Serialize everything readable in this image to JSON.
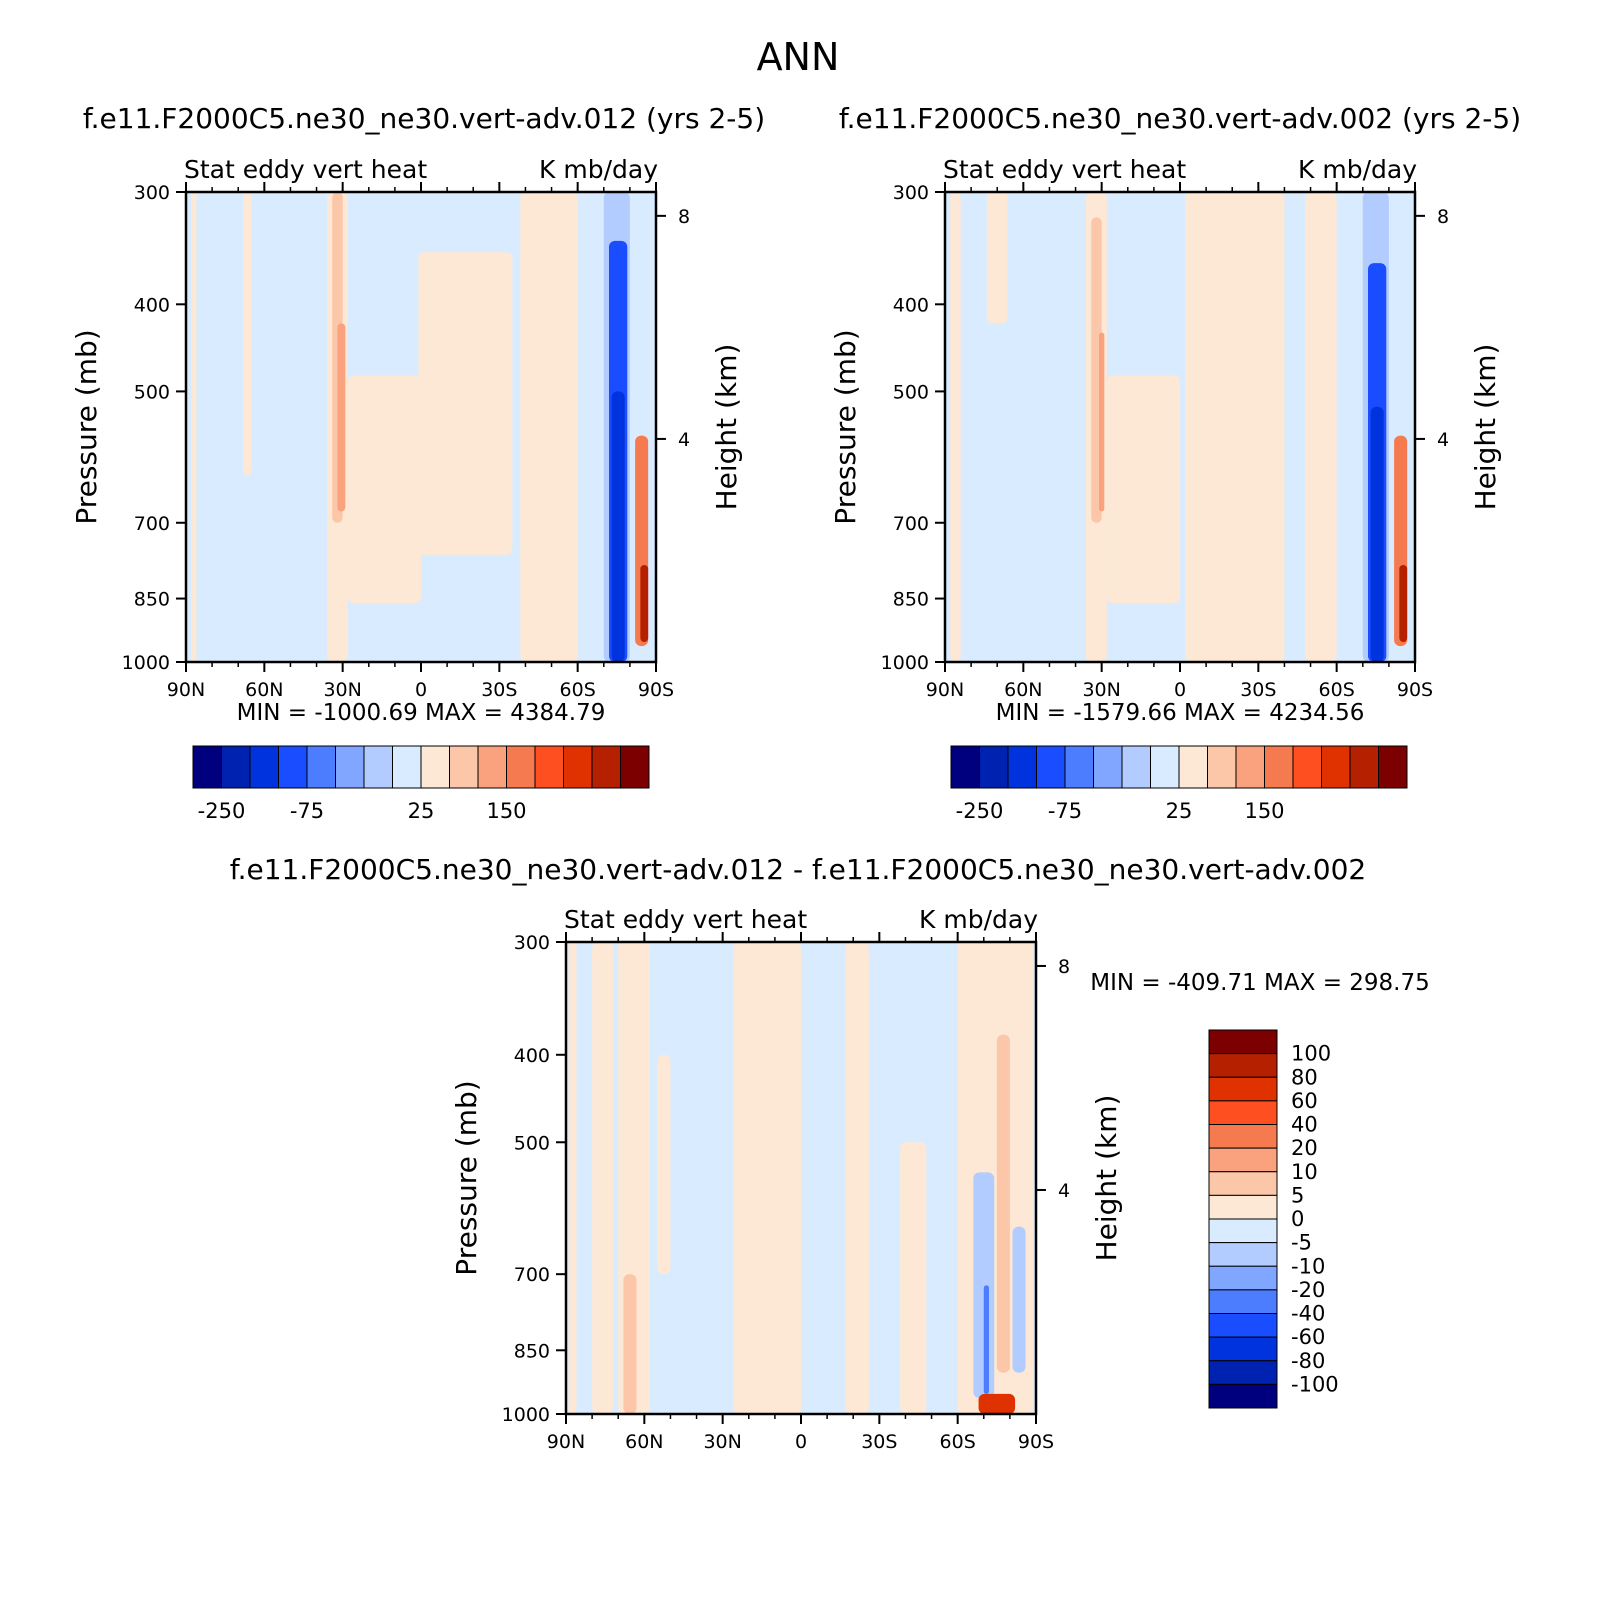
{
  "figure_title": "ANN",
  "colors": {
    "ctrl_scale": [
      "#00007f",
      "#0022b0",
      "#0033dd",
      "#1a4dff",
      "#4d7dff",
      "#80a6ff",
      "#b3ccff",
      "#d9ecff",
      "#fde8d5",
      "#fcc6a8",
      "#f9a27d",
      "#f67a50",
      "#fd4f1f",
      "#df3200",
      "#b42000",
      "#7d0000"
    ],
    "diff_scale": [
      "#00007f",
      "#0022b0",
      "#0033dd",
      "#1a4dff",
      "#4d7dff",
      "#80a6ff",
      "#b3ccff",
      "#d9ecff",
      "#fde8d5",
      "#fcc6a8",
      "#f9a27d",
      "#f67a50",
      "#fd4f1f",
      "#df3200",
      "#b42000",
      "#7d0000"
    ]
  },
  "chart_data": [
    {
      "type": "heatmap",
      "title": "f.e11.F2000C5.ne30_ne30.vert-adv.012 (yrs 2-5)",
      "left_string": "Stat eddy vert heat",
      "right_string": "K mb/day",
      "ylabel": "Pressure (mb)",
      "y2label": "Height (km)",
      "x_ticks": [
        "90N",
        "60N",
        "30N",
        "0",
        "30S",
        "60S",
        "90S"
      ],
      "y_ticks": [
        "300",
        "400",
        "500",
        "700",
        "850",
        "1000"
      ],
      "y2_ticks": [
        "8",
        "4"
      ],
      "ylim": [
        1000,
        300
      ],
      "min_max": "MIN = -1000.69   MAX = 4384.79",
      "colorbar_labels": [
        "-250",
        "-75",
        "25",
        "150"
      ],
      "regions": [
        {
          "lat": 88,
          "lat2": 86,
          "p1": 300,
          "p2": 1000,
          "level": 8
        },
        {
          "lat": 68,
          "lat2": 65,
          "p1": 300,
          "p2": 620,
          "level": 8
        },
        {
          "lat": 36,
          "lat2": 28,
          "p1": 300,
          "p2": 1000,
          "level": 8
        },
        {
          "lat": 34,
          "lat2": 30,
          "p1": 300,
          "p2": 700,
          "level": 9
        },
        {
          "lat": 32,
          "lat2": 29,
          "p1": 420,
          "p2": 680,
          "level": 10
        },
        {
          "lat": 28,
          "lat2": 0,
          "p1": 480,
          "p2": 860,
          "level": 8
        },
        {
          "lat": 1,
          "lat2": -35,
          "p1": 350,
          "p2": 760,
          "level": 8
        },
        {
          "lat": -38,
          "lat2": -60,
          "p1": 300,
          "p2": 1000,
          "level": 8
        },
        {
          "lat": -70,
          "lat2": -80,
          "p1": 300,
          "p2": 1000,
          "level": 6
        },
        {
          "lat": -72,
          "lat2": -79,
          "p1": 340,
          "p2": 1000,
          "level": 3
        },
        {
          "lat": -73,
          "lat2": -78,
          "p1": 500,
          "p2": 1000,
          "level": 2
        },
        {
          "lat": -82,
          "lat2": -87,
          "p1": 560,
          "p2": 960,
          "level": 11
        },
        {
          "lat": -84,
          "lat2": -87,
          "p1": 780,
          "p2": 950,
          "level": 14
        }
      ]
    },
    {
      "type": "heatmap",
      "title": "f.e11.F2000C5.ne30_ne30.vert-adv.002 (yrs 2-5)",
      "left_string": "Stat eddy vert heat",
      "right_string": "K mb/day",
      "ylabel": "Pressure (mb)",
      "y2label": "Height (km)",
      "x_ticks": [
        "90N",
        "60N",
        "30N",
        "0",
        "30S",
        "60S",
        "90S"
      ],
      "y_ticks": [
        "300",
        "400",
        "500",
        "700",
        "850",
        "1000"
      ],
      "y2_ticks": [
        "8",
        "4"
      ],
      "ylim": [
        1000,
        300
      ],
      "min_max": "MIN = -1579.66   MAX = 4234.56",
      "colorbar_labels": [
        "-250",
        "-75",
        "25",
        "150"
      ],
      "regions": [
        {
          "lat": 88,
          "lat2": 84,
          "p1": 300,
          "p2": 1000,
          "level": 8
        },
        {
          "lat": 74,
          "lat2": 66,
          "p1": 300,
          "p2": 420,
          "level": 8
        },
        {
          "lat": 36,
          "lat2": 28,
          "p1": 300,
          "p2": 1000,
          "level": 8
        },
        {
          "lat": 34,
          "lat2": 30,
          "p1": 320,
          "p2": 700,
          "level": 9
        },
        {
          "lat": 31,
          "lat2": 29,
          "p1": 430,
          "p2": 680,
          "level": 10
        },
        {
          "lat": 28,
          "lat2": 0,
          "p1": 480,
          "p2": 860,
          "level": 8
        },
        {
          "lat": -2,
          "lat2": -40,
          "p1": 300,
          "p2": 1000,
          "level": 8
        },
        {
          "lat": -48,
          "lat2": -60,
          "p1": 300,
          "p2": 1000,
          "level": 8
        },
        {
          "lat": -70,
          "lat2": -80,
          "p1": 300,
          "p2": 1000,
          "level": 6
        },
        {
          "lat": -72,
          "lat2": -79,
          "p1": 360,
          "p2": 1000,
          "level": 3
        },
        {
          "lat": -73,
          "lat2": -78,
          "p1": 520,
          "p2": 1000,
          "level": 2
        },
        {
          "lat": -82,
          "lat2": -87,
          "p1": 560,
          "p2": 960,
          "level": 11
        },
        {
          "lat": -84,
          "lat2": -87,
          "p1": 780,
          "p2": 950,
          "level": 14
        }
      ]
    },
    {
      "type": "heatmap",
      "title": "f.e11.F2000C5.ne30_ne30.vert-adv.012 - f.e11.F2000C5.ne30_ne30.vert-adv.002",
      "left_string": "Stat eddy vert heat",
      "right_string": "K mb/day",
      "ylabel": "Pressure (mb)",
      "y2label": "Height (km)",
      "x_ticks": [
        "90N",
        "60N",
        "30N",
        "0",
        "30S",
        "60S",
        "90S"
      ],
      "y_ticks": [
        "300",
        "400",
        "500",
        "700",
        "850",
        "1000"
      ],
      "y2_ticks": [
        "8",
        "4"
      ],
      "ylim": [
        1000,
        300
      ],
      "min_max": "MIN = -409.71   MAX = 298.75",
      "colorbar_labels": [
        "100",
        "80",
        "60",
        "40",
        "20",
        "10",
        "5",
        "0",
        "-5",
        "-10",
        "-20",
        "-40",
        "-60",
        "-80",
        "-100"
      ],
      "regions": [
        {
          "lat": 89,
          "lat2": 86,
          "p1": 300,
          "p2": 1000,
          "level": 8
        },
        {
          "lat": 80,
          "lat2": 72,
          "p1": 300,
          "p2": 1000,
          "level": 8
        },
        {
          "lat": 70,
          "lat2": 58,
          "p1": 300,
          "p2": 1000,
          "level": 8
        },
        {
          "lat": 68,
          "lat2": 63,
          "p1": 700,
          "p2": 1000,
          "level": 9
        },
        {
          "lat": 55,
          "lat2": 50,
          "p1": 400,
          "p2": 700,
          "level": 8
        },
        {
          "lat": 26,
          "lat2": 0,
          "p1": 300,
          "p2": 1000,
          "level": 8
        },
        {
          "lat": -17,
          "lat2": -26,
          "p1": 300,
          "p2": 1000,
          "level": 8
        },
        {
          "lat": -38,
          "lat2": -48,
          "p1": 500,
          "p2": 1000,
          "level": 8
        },
        {
          "lat": -60,
          "lat2": -89,
          "p1": 300,
          "p2": 1000,
          "level": 8
        },
        {
          "lat": -66,
          "lat2": -74,
          "p1": 540,
          "p2": 960,
          "level": 6
        },
        {
          "lat": -70,
          "lat2": -72,
          "p1": 720,
          "p2": 950,
          "level": 4
        },
        {
          "lat": -75,
          "lat2": -80,
          "p1": 380,
          "p2": 900,
          "level": 9
        },
        {
          "lat": -81,
          "lat2": -86,
          "p1": 620,
          "p2": 900,
          "level": 6
        },
        {
          "lat": -68,
          "lat2": -82,
          "p1": 950,
          "p2": 1000,
          "level": 13
        }
      ]
    }
  ]
}
